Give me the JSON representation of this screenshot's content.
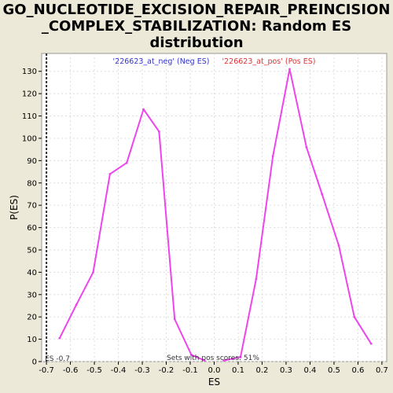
{
  "chart_data": {
    "type": "line",
    "title_lines": [
      "GO_NUCLEOTIDE_EXCISION_REPAIR_PREINCISION",
      "_COMPLEX_STABILIZATION: Random ES",
      "distribution"
    ],
    "xlabel": "ES",
    "ylabel": "P(ES)",
    "xlim": [
      -0.72,
      0.72
    ],
    "ylim": [
      0,
      138
    ],
    "x_ticks": [
      "-0.7",
      "-0.6",
      "-0.5",
      "-0.4",
      "-0.3",
      "-0.2",
      "-0.1",
      "0.0",
      "0.1",
      "0.2",
      "0.3",
      "0.4",
      "0.5",
      "0.6",
      "0.7"
    ],
    "y_ticks": [
      "0",
      "10",
      "20",
      "30",
      "40",
      "50",
      "60",
      "70",
      "80",
      "90",
      "100",
      "110",
      "120",
      "130"
    ],
    "grid": true,
    "series": [
      {
        "name": "'226623_at_neg' (Neg ES)",
        "color": "#ee44ee",
        "x": [
          -0.645,
          -0.575,
          -0.505,
          -0.435,
          -0.365,
          -0.295,
          -0.23,
          -0.165,
          -0.095,
          -0.04
        ],
        "y": [
          10.5,
          25.5,
          40,
          84,
          89,
          113,
          103,
          19,
          3,
          0.5
        ]
      },
      {
        "name": "'226623_at_pos' (Pos ES)",
        "color": "#ee44ee",
        "x": [
          0.04,
          0.11,
          0.175,
          0.245,
          0.315,
          0.385,
          0.45,
          0.52,
          0.585,
          0.655
        ],
        "y": [
          0.5,
          2,
          37,
          92,
          131,
          96,
          75,
          52,
          20,
          8
        ]
      }
    ],
    "legend": [
      {
        "label": "'226623_at_neg' (Neg ES)",
        "color": "#3333cc"
      },
      {
        "label": "'226623_at_pos' (Pos ES)",
        "color": "#dd3333"
      }
    ],
    "legend_position": "top-center",
    "observed_es": {
      "value": -0.7,
      "label": "ES -0.7"
    },
    "bottom_note": "Sets with pos scores: 51%"
  }
}
